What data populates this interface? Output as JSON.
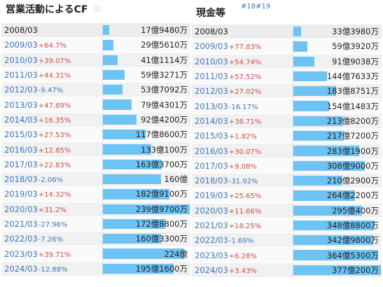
{
  "left": {
    "title": "営業活動によるCF",
    "max": 239.97,
    "rows": [
      {
        "year": "2008/03",
        "change": "",
        "sign": "",
        "value": "17億9480万",
        "amount": 17.948
      },
      {
        "year": "2009/03",
        "change": "+64.7%",
        "sign": "pos",
        "value": "29億5610万",
        "amount": 29.561
      },
      {
        "year": "2010/03",
        "change": "+39.07%",
        "sign": "pos",
        "value": "41億1114万",
        "amount": 41.1114
      },
      {
        "year": "2011/03",
        "change": "+44.31%",
        "sign": "pos",
        "value": "59億3271万",
        "amount": 59.3271
      },
      {
        "year": "2012/03",
        "change": "-9.47%",
        "sign": "neg",
        "value": "53億7092万",
        "amount": 53.7092
      },
      {
        "year": "2013/03",
        "change": "+47.89%",
        "sign": "pos",
        "value": "79億4301万",
        "amount": 79.4301
      },
      {
        "year": "2014/03",
        "change": "+16.35%",
        "sign": "pos",
        "value": "92億4200万",
        "amount": 92.42
      },
      {
        "year": "2015/03",
        "change": "+27.53%",
        "sign": "pos",
        "value": "117億8600万",
        "amount": 117.86
      },
      {
        "year": "2016/03",
        "change": "+12.85%",
        "sign": "pos",
        "value": "133億100万",
        "amount": 133.01
      },
      {
        "year": "2017/03",
        "change": "+22.83%",
        "sign": "pos",
        "value": "163億3700万",
        "amount": 163.37
      },
      {
        "year": "2018/03",
        "change": "-2.06%",
        "sign": "neg",
        "value": "160億",
        "amount": 160
      },
      {
        "year": "2019/03",
        "change": "+14.32%",
        "sign": "pos",
        "value": "182億9100万",
        "amount": 182.91
      },
      {
        "year": "2020/03",
        "change": "+31.2%",
        "sign": "pos",
        "value": "239億9700万",
        "amount": 239.97
      },
      {
        "year": "2021/03",
        "change": "-27.96%",
        "sign": "neg",
        "value": "172億8800万",
        "amount": 172.88
      },
      {
        "year": "2022/03",
        "change": "-7.26%",
        "sign": "neg",
        "value": "160億3300万",
        "amount": 160.33
      },
      {
        "year": "2023/03",
        "change": "+39.71%",
        "sign": "pos",
        "value": "224億",
        "amount": 224
      },
      {
        "year": "2024/03",
        "change": "-12.88%",
        "sign": "neg",
        "value": "195億1600万",
        "amount": 195.16
      }
    ]
  },
  "right": {
    "title": "現金等",
    "tags": "#18#19",
    "max": 377.02,
    "rows": [
      {
        "year": "2008/03",
        "change": "",
        "sign": "",
        "value": "33億3980万",
        "amount": 33.398
      },
      {
        "year": "2009/03",
        "change": "+77.83%",
        "sign": "pos",
        "value": "59億3920万",
        "amount": 59.392
      },
      {
        "year": "2010/03",
        "change": "+54.74%",
        "sign": "pos",
        "value": "91億9038万",
        "amount": 91.9038
      },
      {
        "year": "2011/03",
        "change": "+57.52%",
        "sign": "pos",
        "value": "144億7633万",
        "amount": 144.7633
      },
      {
        "year": "2012/03",
        "change": "+27.02%",
        "sign": "pos",
        "value": "183億8751万",
        "amount": 183.8751
      },
      {
        "year": "2013/03",
        "change": "-16.17%",
        "sign": "neg",
        "value": "154億1483万",
        "amount": 154.1483
      },
      {
        "year": "2014/03",
        "change": "+38.71%",
        "sign": "pos",
        "value": "213億8200万",
        "amount": 213.82
      },
      {
        "year": "2015/03",
        "change": "+1.82%",
        "sign": "pos",
        "value": "217億7200万",
        "amount": 217.72
      },
      {
        "year": "2016/03",
        "change": "+30.07%",
        "sign": "pos",
        "value": "283億1900万",
        "amount": 283.19
      },
      {
        "year": "2017/03",
        "change": "+9.08%",
        "sign": "pos",
        "value": "308億9000万",
        "amount": 308.9
      },
      {
        "year": "2018/03",
        "change": "-31.92%",
        "sign": "neg",
        "value": "210億2900万",
        "amount": 210.29
      },
      {
        "year": "2019/03",
        "change": "+25.65%",
        "sign": "pos",
        "value": "264億2200万",
        "amount": 264.22
      },
      {
        "year": "2020/03",
        "change": "+11.66%",
        "sign": "pos",
        "value": "295億400万",
        "amount": 295.04
      },
      {
        "year": "2021/03",
        "change": "+18.25%",
        "sign": "pos",
        "value": "348億8800万",
        "amount": 348.88
      },
      {
        "year": "2022/03",
        "change": "-1.69%",
        "sign": "neg",
        "value": "342億9800万",
        "amount": 342.98
      },
      {
        "year": "2023/03",
        "change": "+6.28%",
        "sign": "pos",
        "value": "364億5300万",
        "amount": 364.53
      },
      {
        "year": "2024/03",
        "change": "+3.43%",
        "sign": "pos",
        "value": "377億200万",
        "amount": 377.02
      }
    ]
  },
  "colors": {
    "bar": "#6cc3f4",
    "positive": "#d04c4c",
    "negative": "#3a78c0"
  }
}
